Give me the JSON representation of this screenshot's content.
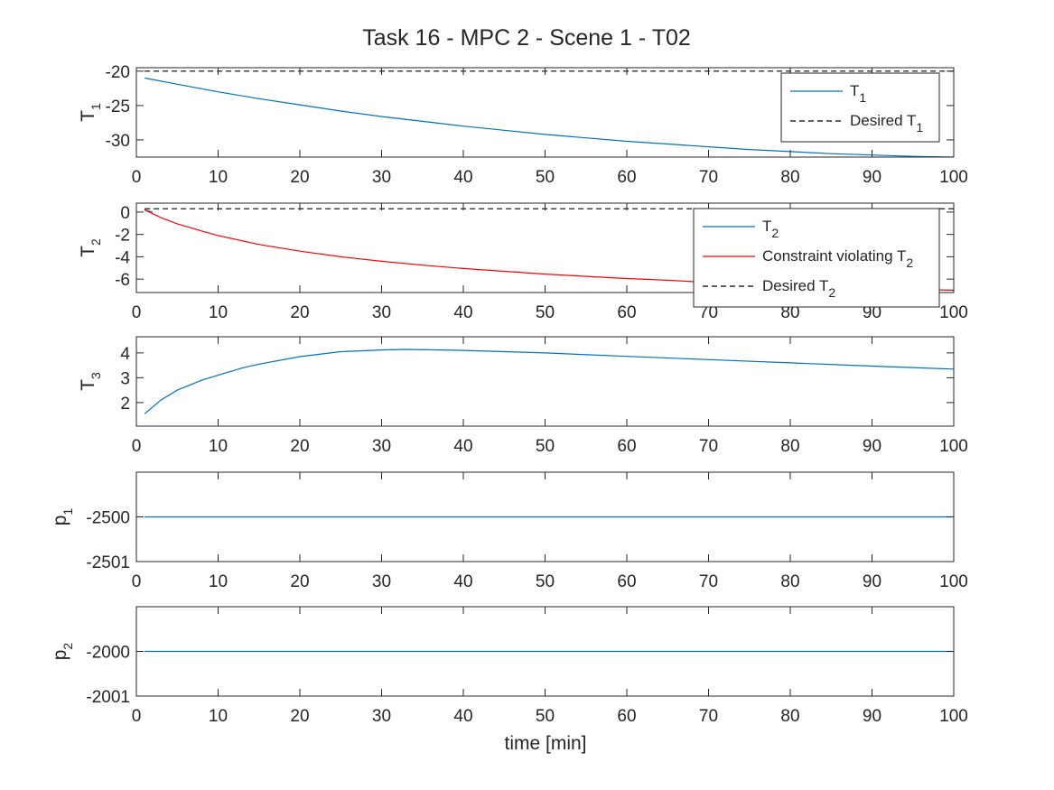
{
  "figure": {
    "title": "Task 16 - MPC 2 - Scene 1 - T02",
    "xlabel": "time [min]"
  },
  "colors": {
    "line_blue": "#0072BD",
    "line_red": "#FF0000",
    "desired_dash": "#000000",
    "axes": "#262626"
  },
  "chart_data": [
    {
      "type": "line",
      "ylabel": {
        "main": "T",
        "sub": "1"
      },
      "xlim": [
        0,
        100
      ],
      "ylim": [
        -32.5,
        -19.5
      ],
      "xticks": [
        0,
        10,
        20,
        30,
        40,
        50,
        60,
        70,
        80,
        90,
        100
      ],
      "yticks": [
        -20,
        -25,
        -30
      ],
      "legend_position": "top-right",
      "series": [
        {
          "name": "T",
          "name_sub": "1",
          "style": "solid",
          "color": "#0072BD",
          "x": [
            1,
            5,
            10,
            15,
            20,
            25,
            30,
            35,
            40,
            45,
            50,
            55,
            60,
            65,
            70,
            75,
            80,
            85,
            90,
            95,
            100
          ],
          "y": [
            -21.0,
            -21.9,
            -23.0,
            -24.0,
            -24.9,
            -25.8,
            -26.6,
            -27.3,
            -28.0,
            -28.6,
            -29.2,
            -29.7,
            -30.2,
            -30.6,
            -31.0,
            -31.4,
            -31.7,
            -32.0,
            -32.2,
            -32.4,
            -32.5
          ]
        },
        {
          "name": "Desired T",
          "name_sub": "1",
          "style": "dashed",
          "color": "#000000",
          "x": [
            1,
            100
          ],
          "y": [
            -20,
            -20
          ]
        }
      ]
    },
    {
      "type": "line",
      "ylabel": {
        "main": "T",
        "sub": "2"
      },
      "xlim": [
        0,
        100
      ],
      "ylim": [
        -7.2,
        0.8
      ],
      "xticks": [
        0,
        10,
        20,
        30,
        40,
        50,
        60,
        70,
        80,
        90,
        100
      ],
      "yticks": [
        0,
        -2,
        -4,
        -6
      ],
      "legend_position": "top-right",
      "series": [
        {
          "name": "T",
          "name_sub": "2",
          "style": "solid",
          "color": "#0072BD",
          "x": [
            1,
            2
          ],
          "y": [
            0.2,
            0.0
          ]
        },
        {
          "name": "Constraint violating T",
          "name_sub": "2",
          "style": "solid",
          "color": "#FF0000",
          "x": [
            1,
            3,
            5,
            8,
            10,
            15,
            20,
            25,
            30,
            35,
            40,
            45,
            50,
            55,
            60,
            65,
            70,
            75,
            80,
            85,
            90,
            95,
            100
          ],
          "y": [
            0.2,
            -0.5,
            -1.05,
            -1.7,
            -2.1,
            -2.9,
            -3.5,
            -4.0,
            -4.4,
            -4.75,
            -5.05,
            -5.3,
            -5.55,
            -5.75,
            -5.95,
            -6.1,
            -6.3,
            -6.45,
            -6.6,
            -6.7,
            -6.8,
            -6.9,
            -7.0
          ]
        },
        {
          "name": "Desired T",
          "name_sub": "2",
          "style": "dashed",
          "color": "#000000",
          "x": [
            1,
            100
          ],
          "y": [
            0.3,
            0.3
          ]
        }
      ]
    },
    {
      "type": "line",
      "ylabel": {
        "main": "T",
        "sub": "3"
      },
      "xlim": [
        0,
        100
      ],
      "ylim": [
        1.05,
        4.65
      ],
      "xticks": [
        0,
        10,
        20,
        30,
        40,
        50,
        60,
        70,
        80,
        90,
        100
      ],
      "yticks": [
        4,
        3,
        2
      ],
      "series": [
        {
          "style": "solid",
          "color": "#0072BD",
          "x": [
            1,
            3,
            5,
            8,
            10,
            13,
            15,
            20,
            25,
            30,
            33,
            40,
            50,
            60,
            70,
            80,
            90,
            100
          ],
          "y": [
            1.55,
            2.1,
            2.5,
            2.9,
            3.1,
            3.4,
            3.55,
            3.85,
            4.05,
            4.12,
            4.14,
            4.1,
            4.0,
            3.86,
            3.73,
            3.6,
            3.47,
            3.35
          ]
        }
      ]
    },
    {
      "type": "line",
      "ylabel": {
        "main": "p",
        "sub": "1"
      },
      "xlim": [
        0,
        100
      ],
      "ylim": [
        -2501,
        -2499
      ],
      "xticks": [
        0,
        10,
        20,
        30,
        40,
        50,
        60,
        70,
        80,
        90,
        100
      ],
      "yticks": [
        -2500,
        -2501
      ],
      "series": [
        {
          "style": "solid",
          "color": "#0072BD",
          "x": [
            1,
            100
          ],
          "y": [
            -2500,
            -2500
          ]
        }
      ]
    },
    {
      "type": "line",
      "ylabel": {
        "main": "p",
        "sub": "2"
      },
      "xlim": [
        0,
        100
      ],
      "ylim": [
        -2001,
        -1999
      ],
      "xticks": [
        0,
        10,
        20,
        30,
        40,
        50,
        60,
        70,
        80,
        90,
        100
      ],
      "yticks": [
        -2000,
        -2001
      ],
      "series": [
        {
          "style": "solid",
          "color": "#0072BD",
          "x": [
            1,
            100
          ],
          "y": [
            -2000,
            -2000
          ]
        }
      ]
    }
  ]
}
